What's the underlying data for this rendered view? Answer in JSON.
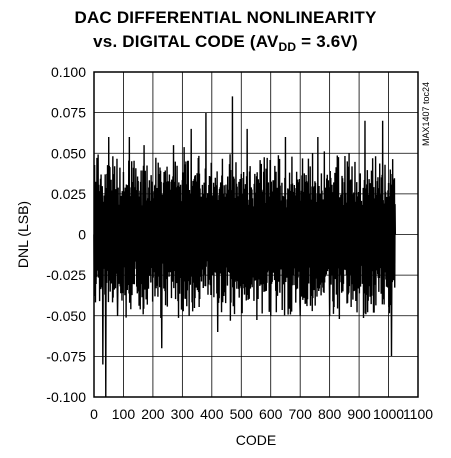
{
  "chart_data": {
    "type": "line",
    "title_line1": "DAC DIFFERENTIAL NONLINEARITY",
    "title_line2_prefix": "vs. DIGITAL CODE (AV",
    "title_line2_sub": "DD",
    "title_line2_suffix": " = 3.6V)",
    "xlabel": "CODE",
    "ylabel": "DNL (LSB)",
    "side_note": "MAX1407 toc24",
    "xlim": [
      0,
      1100
    ],
    "ylim": [
      -0.1,
      0.1
    ],
    "x_ticks": [
      0,
      100,
      200,
      300,
      400,
      500,
      600,
      700,
      800,
      900,
      1000,
      1100
    ],
    "x_tick_labels": [
      "0",
      "100",
      "200",
      "300",
      "400",
      "500",
      "600",
      "700",
      "800",
      "900",
      "1000",
      "1100"
    ],
    "y_ticks": [
      0.1,
      0.075,
      0.05,
      0.025,
      0,
      -0.025,
      -0.05,
      -0.075,
      -0.1
    ],
    "y_tick_labels": [
      "0.100",
      "0.075",
      "0.050",
      "0.025",
      "0",
      "-0.025",
      "-0.050",
      "-0.075",
      "-0.100"
    ],
    "grid": true,
    "series": [
      {
        "code_range": [
          0,
          1023
        ],
        "points": [
          [
            0,
            0.0
          ],
          [
            20,
            0.02
          ],
          [
            30,
            -0.08
          ],
          [
            40,
            -0.1
          ],
          [
            50,
            0.06
          ],
          [
            80,
            -0.05
          ],
          [
            120,
            0.06
          ],
          [
            170,
            0.055
          ],
          [
            230,
            -0.07
          ],
          [
            270,
            0.055
          ],
          [
            330,
            0.065
          ],
          [
            380,
            0.075
          ],
          [
            420,
            -0.06
          ],
          [
            470,
            0.085
          ],
          [
            520,
            0.065
          ],
          [
            600,
            -0.05
          ],
          [
            650,
            0.06
          ],
          [
            700,
            -0.05
          ],
          [
            760,
            0.06
          ],
          [
            800,
            -0.05
          ],
          [
            860,
            0.045
          ],
          [
            920,
            0.07
          ],
          [
            980,
            0.07
          ],
          [
            1010,
            -0.075
          ],
          [
            1023,
            0.0
          ]
        ]
      }
    ]
  }
}
